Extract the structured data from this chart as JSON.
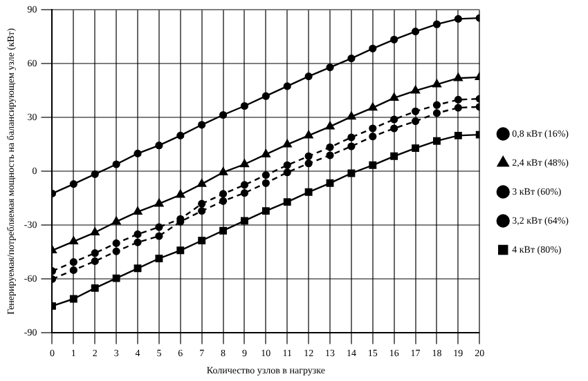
{
  "chart_data": {
    "type": "line",
    "xlabel": "Количество узлов в нагрузке",
    "ylabel": "Генерируемая/потребляемая мощность на балансирующем узле (кВт)",
    "x": [
      0,
      1,
      2,
      3,
      4,
      5,
      6,
      7,
      8,
      9,
      10,
      11,
      12,
      13,
      14,
      15,
      16,
      17,
      18,
      19,
      20
    ],
    "xlim": [
      0,
      20
    ],
    "xticks": [
      0,
      1,
      2,
      3,
      4,
      5,
      6,
      7,
      8,
      9,
      10,
      11,
      12,
      13,
      14,
      15,
      16,
      17,
      18,
      19,
      20
    ],
    "ylim": [
      -90,
      90
    ],
    "yticks": [
      -90,
      -60,
      -30,
      0,
      30,
      60,
      90
    ],
    "grid": true,
    "legend": "right",
    "series": [
      {
        "name": "0,8 кВт (16%)",
        "color": "#000000",
        "marker": "circle",
        "line_style": "solid",
        "values": [
          -12.3,
          -7,
          -1.5,
          4,
          10,
          14.5,
          20,
          26,
          31.5,
          36.5,
          42,
          47.5,
          53,
          58,
          63,
          68.5,
          73.5,
          78,
          82,
          85,
          85.5
        ]
      },
      {
        "name": "2,4 кВт (48%)",
        "color": "#000000",
        "marker": "triangle",
        "line_style": "solid",
        "values": [
          -44,
          -39,
          -34,
          -28,
          -22.5,
          -18,
          -13,
          -7,
          -0.5,
          4,
          9.5,
          15,
          20,
          25,
          30.5,
          35.5,
          41,
          45,
          48.5,
          52,
          52.5
        ]
      },
      {
        "name": "3 кВт (60%)",
        "color": "#000000",
        "marker": "circle",
        "line_style": "dashed",
        "values": [
          -55.5,
          -50.5,
          -45.5,
          -40,
          -35,
          -31,
          -26.5,
          -18,
          -12.5,
          -7.5,
          -2,
          3.5,
          8.5,
          13.5,
          19,
          24,
          29,
          33.5,
          37,
          40,
          40.5
        ]
      },
      {
        "name": "3,2 кВт (64%)",
        "color": "#000000",
        "marker": "circle",
        "line_style": "dashed",
        "values": [
          -60,
          -55,
          -50,
          -44.5,
          -39.5,
          -36,
          -28,
          -22,
          -16.5,
          -12,
          -6.5,
          -0.5,
          4.5,
          9,
          14,
          19.5,
          24,
          28,
          32.5,
          35.5,
          36
        ]
      },
      {
        "name": "4 кВт (80%)",
        "color": "#000000",
        "marker": "square",
        "line_style": "solid",
        "values": [
          -75,
          -71,
          -65,
          -59.5,
          -54,
          -48.5,
          -44,
          -38.5,
          -33,
          -27.5,
          -22,
          -17,
          -11.5,
          -6.5,
          -1,
          3.5,
          8.5,
          13,
          17,
          20,
          20.5
        ]
      }
    ]
  }
}
